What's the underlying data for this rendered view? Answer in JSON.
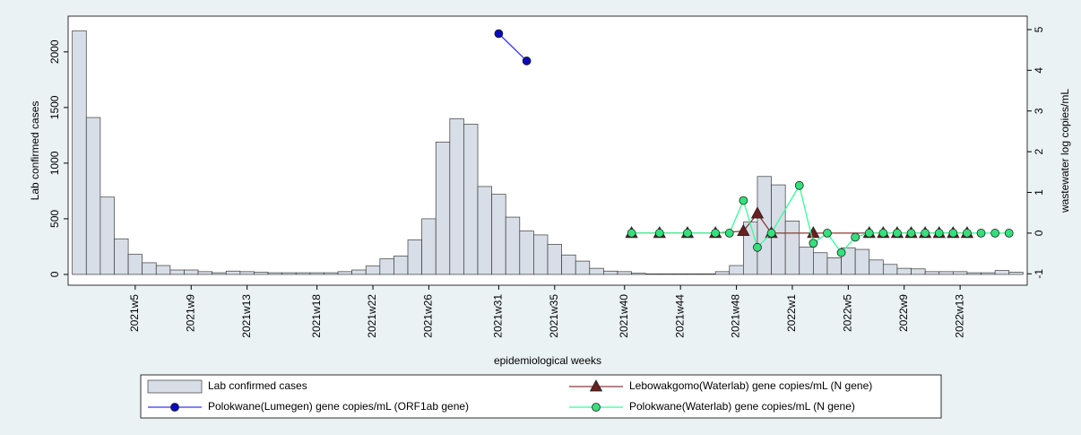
{
  "chart_data": {
    "type": "bar-line",
    "x_label": "epidemiological weeks",
    "y_label": "Lab confirmed cases",
    "y2_label": "wastewater log copies/mL",
    "xlim": [
      -0.8,
      67.8
    ],
    "xticks": [
      {
        "value": 4,
        "label": "2021w5"
      },
      {
        "value": 8,
        "label": "2021w9"
      },
      {
        "value": 12,
        "label": "2021w13"
      },
      {
        "value": 17,
        "label": "2021w18"
      },
      {
        "value": 21,
        "label": "2021w22"
      },
      {
        "value": 25,
        "label": "2021w26"
      },
      {
        "value": 30,
        "label": "2021w31"
      },
      {
        "value": 34,
        "label": "2021w35"
      },
      {
        "value": 39,
        "label": "2021w40"
      },
      {
        "value": 43,
        "label": "2021w44"
      },
      {
        "value": 47,
        "label": "2021w48"
      },
      {
        "value": 51,
        "label": "2022w1"
      },
      {
        "value": 55,
        "label": "2022w5"
      },
      {
        "value": 59,
        "label": "2022w9"
      },
      {
        "value": 63,
        "label": "2022w13"
      }
    ],
    "ylim": [
      -97,
      2321
    ],
    "yticks": [
      0,
      500,
      1000,
      1500,
      2000
    ],
    "y2lim": [
      -1.28,
      5.33
    ],
    "y2ticks": [
      -1,
      0,
      1,
      2,
      3,
      4,
      5
    ],
    "series": [
      {
        "name": "Lab confirmed cases",
        "kind": "bar",
        "color": "#d8dee7",
        "x": [
          0,
          1,
          2,
          3,
          4,
          5,
          6,
          7,
          8,
          9,
          10,
          11,
          12,
          13,
          14,
          15,
          16,
          17,
          18,
          19,
          20,
          21,
          22,
          23,
          24,
          25,
          26,
          27,
          28,
          29,
          30,
          31,
          32,
          33,
          34,
          35,
          36,
          37,
          38,
          39,
          40,
          41,
          42,
          43,
          44,
          45,
          46,
          47,
          48,
          49,
          50,
          51,
          52,
          53,
          54,
          55,
          56,
          57,
          58,
          59,
          60,
          61,
          62,
          63,
          64,
          65,
          66,
          67
        ],
        "values": [
          2190,
          1410,
          695,
          320,
          180,
          105,
          80,
          40,
          40,
          25,
          15,
          30,
          25,
          20,
          15,
          15,
          15,
          15,
          15,
          25,
          40,
          75,
          140,
          165,
          310,
          500,
          1190,
          1400,
          1350,
          790,
          720,
          515,
          390,
          355,
          270,
          175,
          120,
          55,
          30,
          25,
          10,
          5,
          5,
          5,
          5,
          5,
          25,
          80,
          470,
          880,
          805,
          480,
          245,
          195,
          150,
          240,
          225,
          130,
          90,
          55,
          50,
          25,
          25,
          25,
          15,
          15,
          35,
          20
        ]
      },
      {
        "name": "Lebowakgomo(Waterlab) gene copies/mL (N gene)",
        "kind": "line",
        "axis": "y2",
        "marker": "triangle",
        "color": "#8b3a3a",
        "marker_color": "#6b1f1f",
        "x": [
          39.5,
          41.5,
          43.5,
          45.5,
          47.5,
          48.5,
          49.5,
          52.5,
          56.5,
          57.5,
          58.5,
          59.5,
          60.5,
          61.5,
          62.5,
          63.5
        ],
        "values": [
          0,
          0,
          0,
          0,
          0.05,
          0.48,
          0,
          0,
          0,
          0,
          0,
          0,
          0,
          0,
          0,
          0
        ]
      },
      {
        "name": "Polokwane(Lumegen) gene copies/mL (ORF1ab gene)",
        "kind": "line",
        "axis": "y2",
        "marker": "circle",
        "color": "#3333ff",
        "marker_color": "#0a0ab8",
        "x": [
          30,
          32
        ],
        "values": [
          4.9,
          4.23
        ]
      },
      {
        "name": "Polokwane(Waterlab) gene copies/mL (N gene)",
        "kind": "line",
        "axis": "y2",
        "marker": "circle",
        "color": "#33ff99",
        "marker_color": "#33e07a",
        "x": [
          39.5,
          41.5,
          43.5,
          45.5,
          46.5,
          47.5,
          48.5,
          49.5,
          51.5,
          52.5,
          53.5,
          54.5,
          55.5,
          56.5,
          57.5,
          58.5,
          59.5,
          60.5,
          61.5,
          62.5,
          63.5,
          64.5,
          65.5,
          66.5
        ],
        "values": [
          0,
          0,
          0,
          0,
          0,
          0.8,
          -0.35,
          0,
          1.17,
          -0.25,
          0,
          -0.48,
          -0.1,
          0,
          0,
          0,
          0,
          0,
          0,
          0,
          0,
          0,
          0,
          0
        ]
      }
    ],
    "legend_order": [
      0,
      1,
      2,
      3
    ]
  }
}
